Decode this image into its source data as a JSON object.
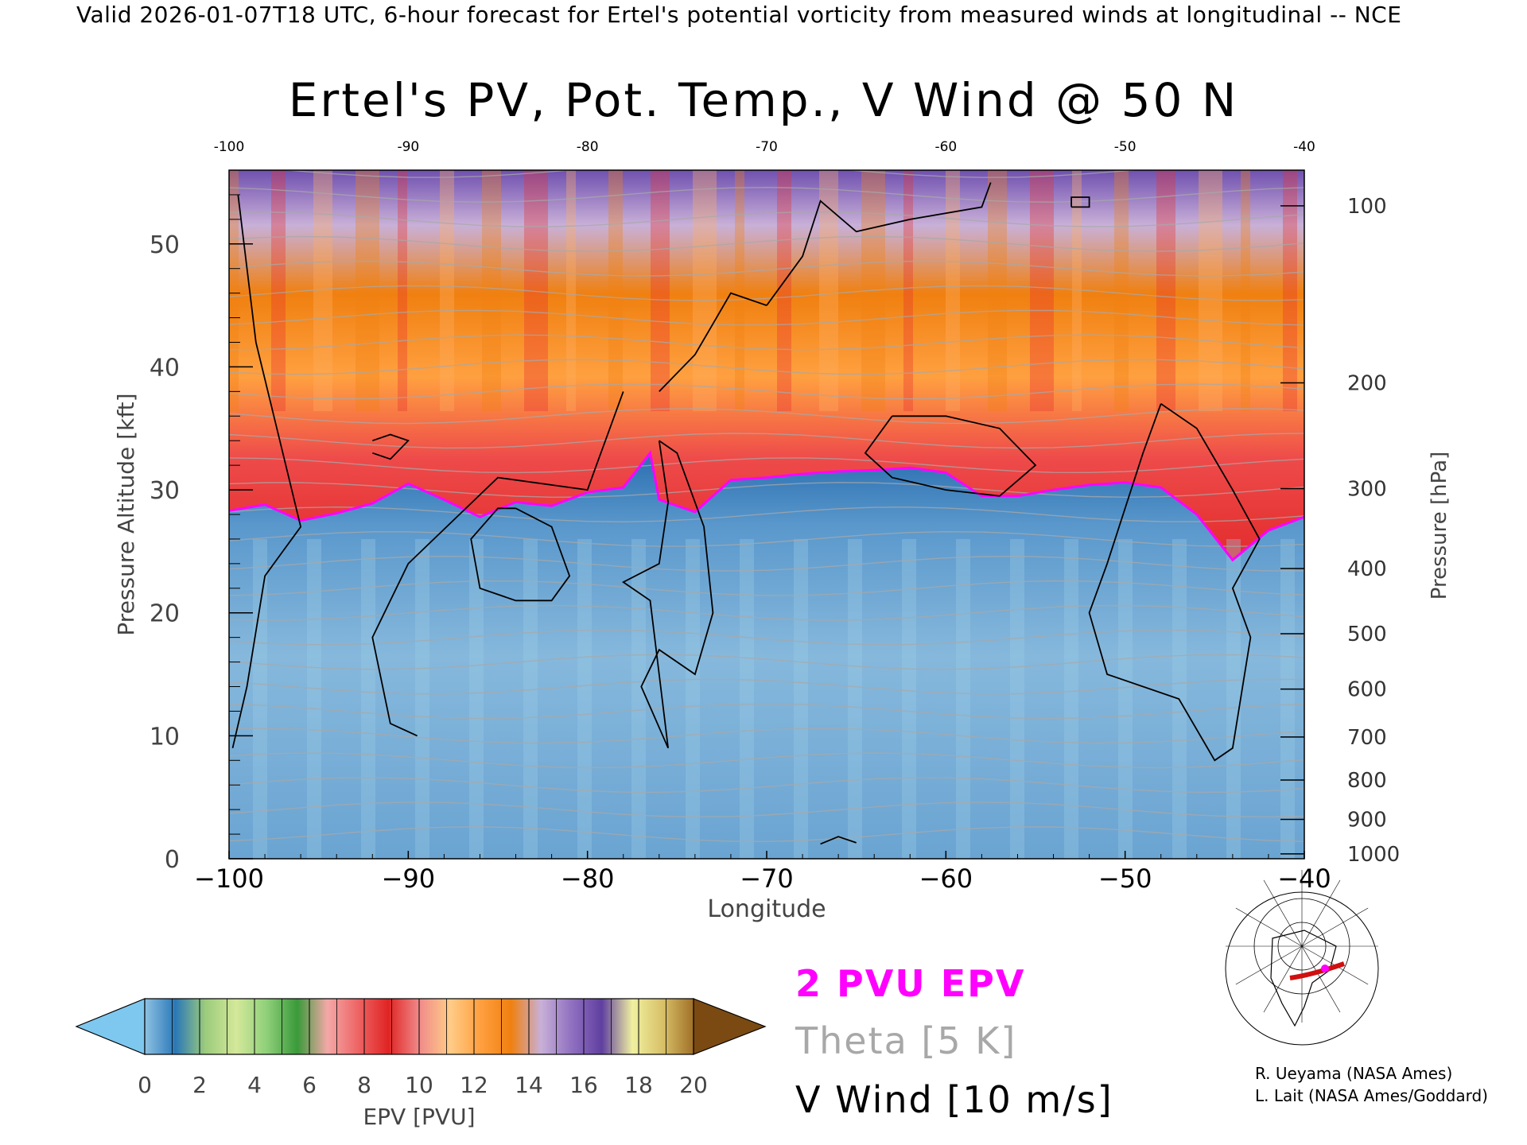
{
  "caption": "Valid 2026-01-07T18 UTC, 6-hour forecast for Ertel's potential vorticity from measured winds at longitudinal -- NCE",
  "chart_data": {
    "type": "heatmap",
    "title": "Ertel's PV, Pot. Temp., V Wind @ 50 N",
    "xlabel": "Longitude",
    "ylabel": "Pressure Altitude [kft]",
    "y2label": "Pressure [hPa]",
    "xlim": [
      -100,
      -40
    ],
    "ylim": [
      0,
      56
    ],
    "x_ticks": [
      -100,
      -90,
      -80,
      -70,
      -60,
      -50,
      -40
    ],
    "y_ticks": [
      0,
      10,
      20,
      30,
      40,
      50
    ],
    "pressure_ticks": [
      {
        "hPa": "100",
        "kft": 53.1
      },
      {
        "hPa": "200",
        "kft": 38.7
      },
      {
        "hPa": "300",
        "kft": 30.1
      },
      {
        "hPa": "400",
        "kft": 23.6
      },
      {
        "hPa": "500",
        "kft": 18.3
      },
      {
        "hPa": "600",
        "kft": 13.8
      },
      {
        "hPa": "700",
        "kft": 9.9
      },
      {
        "hPa": "800",
        "kft": 6.4
      },
      {
        "hPa": "900",
        "kft": 3.2
      },
      {
        "hPa": "1000",
        "kft": 0.4
      }
    ],
    "pv2_tropopause_kft": {
      "lon": [
        -100,
        -98,
        -96,
        -94,
        -92,
        -90,
        -88,
        -86,
        -84,
        -82,
        -80,
        -78,
        -76.5,
        -76,
        -74,
        -72,
        -70,
        -68,
        -66,
        -64,
        -62,
        -60,
        -58,
        -56,
        -54,
        -52,
        -50,
        -48,
        -46,
        -44,
        -42,
        -40
      ],
      "kft": [
        28.3,
        28.8,
        27.5,
        28.1,
        28.9,
        30.5,
        29.2,
        27.8,
        29.0,
        28.7,
        29.8,
        30.2,
        33.0,
        29.2,
        28.2,
        30.8,
        31.0,
        31.3,
        31.5,
        31.6,
        31.8,
        31.4,
        29.5,
        29.5,
        30.0,
        30.4,
        30.6,
        30.2,
        28.0,
        24.3,
        26.7,
        27.8
      ]
    },
    "colorbar": {
      "label": "EPV [PVU]",
      "ticks": [
        "0",
        "2",
        "4",
        "6",
        "8",
        "10",
        "12",
        "14",
        "16",
        "18",
        "20"
      ],
      "under_color": "#7ec8f0",
      "over_color": "#7a4a12",
      "color_stops": [
        "#8ec2e2",
        "#2a78b8",
        "#9ccc7c",
        "#d4e89a",
        "#8fd07a",
        "#3a9a3a",
        "#f4a8a8",
        "#ee6464",
        "#e02424",
        "#f08a8a",
        "#ffcc88",
        "#ffa040",
        "#f08010",
        "#c8b0d8",
        "#9070c0",
        "#6040a0",
        "#f0f0a0",
        "#d8c068",
        "#a07028"
      ]
    }
  },
  "legend": {
    "pv": "2 PVU EPV",
    "theta": "Theta [5 K]",
    "wind": "V Wind [10 m/s]"
  },
  "credits": [
    "R. Ueyama (NASA Ames)",
    "L. Lait (NASA Ames/Goddard)"
  ],
  "colors": {
    "pv2_line": "#ff00ff",
    "theta_line": "#a8a8a8",
    "wind_line": "#000000"
  }
}
